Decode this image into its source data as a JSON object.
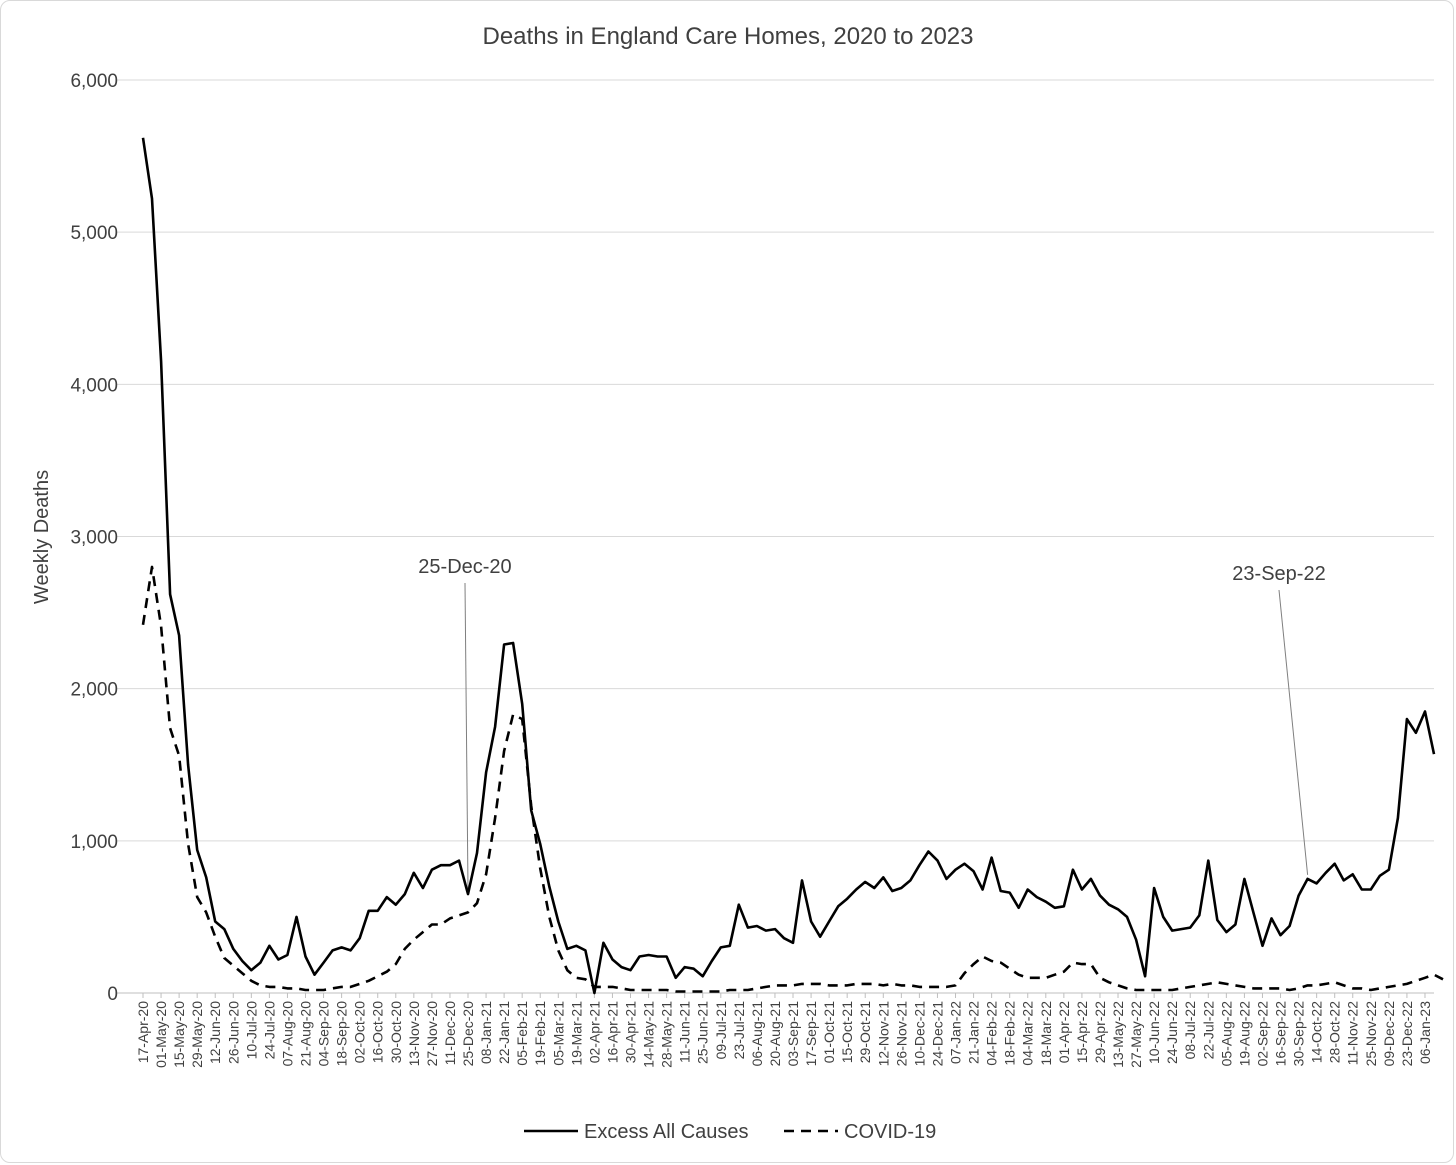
{
  "chart_data": {
    "type": "line",
    "title": "Deaths in England Care Homes, 2020 to 2023",
    "ylabel": "Weekly Deaths",
    "xlabel": "",
    "ylim": [
      0,
      6000
    ],
    "yticks": [
      0,
      1000,
      2000,
      3000,
      4000,
      5000,
      6000
    ],
    "ytick_labels": [
      "0",
      "1,000",
      "2,000",
      "3,000",
      "4,000",
      "5,000",
      "6,000"
    ],
    "grid": "horizontal",
    "legend_position": "bottom",
    "xtick_labels": [
      "17-Apr-20",
      "01-May-20",
      "15-May-20",
      "29-May-20",
      "12-Jun-20",
      "26-Jun-20",
      "10-Jul-20",
      "24-Jul-20",
      "07-Aug-20",
      "21-Aug-20",
      "04-Sep-20",
      "18-Sep-20",
      "02-Oct-20",
      "16-Oct-20",
      "30-Oct-20",
      "13-Nov-20",
      "27-Nov-20",
      "11-Dec-20",
      "25-Dec-20",
      "08-Jan-21",
      "22-Jan-21",
      "05-Feb-21",
      "19-Feb-21",
      "05-Mar-21",
      "19-Mar-21",
      "02-Apr-21",
      "16-Apr-21",
      "30-Apr-21",
      "14-May-21",
      "28-May-21",
      "11-Jun-21",
      "25-Jun-21",
      "09-Jul-21",
      "23-Jul-21",
      "06-Aug-21",
      "20-Aug-21",
      "03-Sep-21",
      "17-Sep-21",
      "01-Oct-21",
      "15-Oct-21",
      "29-Oct-21",
      "12-Nov-21",
      "26-Nov-21",
      "10-Dec-21",
      "24-Dec-21",
      "07-Jan-22",
      "21-Jan-22",
      "04-Feb-22",
      "18-Feb-22",
      "04-Mar-22",
      "18-Mar-22",
      "01-Apr-22",
      "15-Apr-22",
      "29-Apr-22",
      "13-May-22",
      "27-May-22",
      "10-Jun-22",
      "24-Jun-22",
      "08-Jul-22",
      "22-Jul-22",
      "05-Aug-22",
      "19-Aug-22",
      "02-Sep-22",
      "16-Sep-22",
      "30-Sep-22",
      "14-Oct-22",
      "28-Oct-22",
      "11-Nov-22",
      "25-Nov-22",
      "09-Dec-22",
      "23-Dec-22",
      "06-Jan-23"
    ],
    "series": [
      {
        "name": "Excess All Causes",
        "style": "solid",
        "values": [
          5620,
          5220,
          4150,
          2620,
          2350,
          1500,
          940,
          760,
          470,
          420,
          290,
          210,
          150,
          200,
          310,
          220,
          250,
          500,
          240,
          120,
          200,
          280,
          300,
          280,
          360,
          540,
          540,
          630,
          580,
          650,
          790,
          690,
          810,
          840,
          840,
          870,
          650,
          920,
          1450,
          1750,
          2290,
          2300,
          1900,
          1200,
          980,
          700,
          470,
          290,
          310,
          280,
          0,
          330,
          220,
          170,
          150,
          240,
          250,
          240,
          240,
          100,
          170,
          160,
          110,
          210,
          300,
          310,
          580,
          430,
          440,
          410,
          420,
          360,
          330,
          740,
          470,
          370,
          470,
          570,
          620,
          680,
          730,
          690,
          760,
          670,
          690,
          740,
          840,
          930,
          870,
          750,
          810,
          850,
          800,
          680,
          890,
          670,
          660,
          560,
          680,
          630,
          600,
          560,
          570,
          810,
          680,
          750,
          640,
          580,
          550,
          500,
          350,
          110,
          690,
          500,
          410,
          420,
          430,
          510,
          870,
          480,
          400,
          450,
          750,
          530,
          310,
          490,
          380,
          440,
          640,
          750,
          720,
          790,
          850,
          740,
          780,
          680,
          680,
          770,
          810,
          1150,
          1800,
          1710,
          1850,
          1570
        ]
      },
      {
        "name": "COVID-19",
        "style": "dashed",
        "values": [
          2420,
          2800,
          2410,
          1740,
          1560,
          980,
          630,
          530,
          370,
          230,
          180,
          130,
          80,
          50,
          40,
          40,
          30,
          30,
          20,
          20,
          20,
          30,
          40,
          40,
          60,
          80,
          110,
          140,
          190,
          290,
          350,
          400,
          450,
          450,
          490,
          510,
          530,
          590,
          780,
          1150,
          1590,
          1830,
          1800,
          1230,
          820,
          500,
          280,
          150,
          100,
          90,
          40,
          40,
          40,
          30,
          20,
          20,
          20,
          20,
          20,
          10,
          10,
          10,
          10,
          10,
          10,
          20,
          20,
          20,
          30,
          40,
          50,
          50,
          50,
          60,
          60,
          60,
          50,
          50,
          50,
          60,
          60,
          60,
          50,
          60,
          50,
          50,
          40,
          40,
          40,
          40,
          50,
          130,
          190,
          240,
          210,
          200,
          160,
          120,
          100,
          100,
          100,
          120,
          140,
          200,
          190,
          190,
          100,
          70,
          50,
          30,
          20,
          20,
          20,
          20,
          20,
          30,
          40,
          50,
          60,
          70,
          60,
          50,
          40,
          30,
          30,
          30,
          30,
          20,
          30,
          50,
          50,
          60,
          70,
          50,
          30,
          30,
          20,
          30,
          40,
          50,
          60,
          80,
          100,
          120,
          90
        ]
      }
    ],
    "annotations": [
      {
        "label": "25-Dec-20",
        "x_index": 36
      },
      {
        "label": "23-Sep-22",
        "x_index": 129
      }
    ]
  }
}
